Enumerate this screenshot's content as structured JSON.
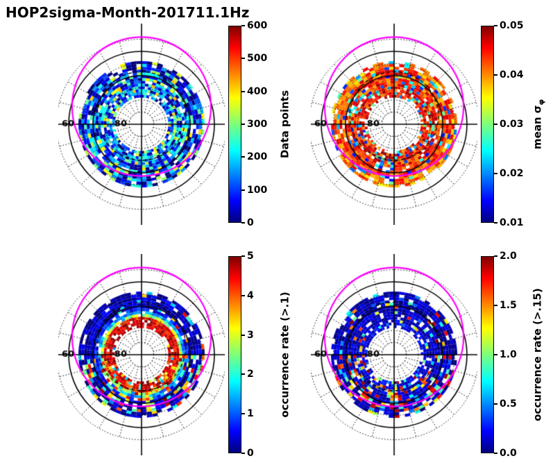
{
  "title": "HOP2sigma-Month-201711.1Hz",
  "chart_data": {
    "type": "heatmap",
    "subtype": "2x2 polar (magnetic latitude / MLT) dial plots with jet colormap",
    "title": "HOP2sigma-Month-201711.1Hz",
    "colormap": "jet",
    "polar_grid": {
      "lat_circle_labels": [
        {
          "text": "60",
          "offset_deg": -30.3
        },
        {
          "text": "80",
          "offset_deg": -8.6
        }
      ],
      "dotted_circles_colat_deg": [
        5,
        10,
        15,
        25,
        35
      ],
      "solid_circles_colat_deg": [
        20,
        30
      ],
      "spoke_step_deg": 15,
      "spoke_colat_range_deg": [
        5,
        35
      ],
      "cross_lines": true
    },
    "overlays": {
      "magenta_circle": {
        "color": "#ff00ff",
        "center_offset_colat_deg": -7.3,
        "radius_colat_deg": 28.6
      },
      "black_dashed_circle": {
        "color": "#000000",
        "center_offset_colat_deg": -3.4,
        "radius_colat_deg": 18.2
      }
    },
    "data_annulus_colat_deg": [
      11,
      26
    ],
    "panels": [
      {
        "name": "data-points",
        "position": "top-left",
        "colorbar": {
          "label": "Data points",
          "ticks": [
            "0",
            "100",
            "200",
            "300",
            "400",
            "500",
            "600"
          ],
          "min": 0,
          "max": 600
        },
        "summary": "mostly 30-180 data points (blue) over the whole ring, with scattered 200-420 (cyan/green/yellow) patches and a few near-0 dark cells",
        "pattern": {
          "seed": 7,
          "radial_base_t": [
            0.16,
            0.18,
            0.2,
            0.22,
            0.22,
            0.21,
            0.19,
            0.18,
            0.16,
            0.13,
            0.11,
            0.09,
            0.07
          ],
          "noise_t": 0.24,
          "patch_prob_top": 0.22,
          "patch_prob_bottom": 0.22,
          "patch_t_range": [
            0.35,
            0.7
          ],
          "gap_prob": 0.09
        }
      },
      {
        "name": "mean-sigma-phi",
        "position": "top-right",
        "colorbar": {
          "label": "mean σ",
          "label_sub": "φ",
          "ticks": [
            "0.01",
            "0.02",
            "0.03",
            "0.04",
            "0.05"
          ],
          "min": 0.01,
          "max": 0.05
        },
        "summary": "mostly 0.04-0.05 (orange/dark red) with scattered 0.015-0.03 (blue-cyan-green) patches",
        "pattern": {
          "seed": 19,
          "radial_base_t": [
            0.84,
            0.86,
            0.86,
            0.85,
            0.84,
            0.84,
            0.83,
            0.82,
            0.82,
            0.8,
            0.78,
            0.76,
            0.74
          ],
          "noise_t": 0.13,
          "patch_prob_top": 0.16,
          "patch_prob_bottom": 0.2,
          "patch_t_range": [
            0.12,
            0.5
          ],
          "gap_prob": 0.1
        }
      },
      {
        "name": "occurrence-rate-gt-0.1",
        "position": "bottom-left",
        "colorbar": {
          "label": "occurrence rate (>.1)",
          "ticks": [
            "0",
            "1",
            "2",
            "3",
            "4",
            "5"
          ],
          "min": 0,
          "max": 5
        },
        "summary": "red ring (4.5-5) hugging the inner hole, dark blue (<0.5) outer band, mixed 1-4 patches mostly in lower half",
        "pattern": {
          "seed": 31,
          "radial_base_t": [
            0.92,
            0.93,
            0.9,
            0.85,
            0.55,
            0.28,
            0.14,
            0.1,
            0.07,
            0.06,
            0.05,
            0.05,
            0.04
          ],
          "noise_t": 0.09,
          "patch_prob_top": 0.07,
          "patch_prob_bottom": 0.38,
          "patch_t_range": [
            0.25,
            1.0
          ],
          "gap_prob": 0.09
        }
      },
      {
        "name": "occurrence-rate-gt-0.15",
        "position": "bottom-right",
        "colorbar": {
          "label": "occurrence rate (>.15)",
          "ticks": [
            "0.0",
            "0.5",
            "1.0",
            "1.5",
            "2.0"
          ],
          "min": 0,
          "max": 2
        },
        "summary": "mostly dark blue (<0.3) with mixed 0.5-2.0 (cyan/yellow/red) patches concentrated in the lower half of the ring",
        "pattern": {
          "seed": 43,
          "radial_base_t": [
            0.1,
            0.1,
            0.09,
            0.08,
            0.08,
            0.07,
            0.07,
            0.06,
            0.06,
            0.05,
            0.05,
            0.05,
            0.04
          ],
          "noise_t": 0.07,
          "patch_prob_top": 0.1,
          "patch_prob_bottom": 0.32,
          "patch_t_range": [
            0.2,
            1.0
          ],
          "gap_prob": 0.1
        }
      }
    ]
  }
}
